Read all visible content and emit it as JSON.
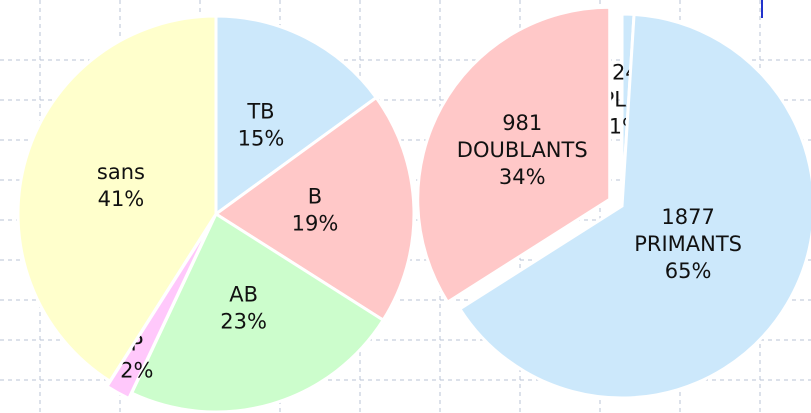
{
  "chart_data": [
    {
      "type": "pie",
      "categories": [
        "TB",
        "B",
        "AB",
        "P",
        "sans"
      ],
      "values": [
        15,
        19,
        23,
        2,
        41
      ],
      "value_labels": [
        "15%",
        "19%",
        "23%",
        "2%",
        "41%"
      ],
      "colors": [
        "#cce8fb",
        "#ffc8c8",
        "#ccfdcc",
        "#ffc8fb",
        "#ffffcc"
      ]
    },
    {
      "type": "pie",
      "categories": [
        "TRIPLANTS",
        "PRIMANTS",
        "DOUBLANTS"
      ],
      "counts": [
        24,
        1877,
        981
      ],
      "values": [
        1,
        65,
        34
      ],
      "value_labels": [
        "1%",
        "65%",
        "34%"
      ],
      "colors": [
        "#cce8fb",
        "#cce8fb",
        "#ffc8c8"
      ]
    }
  ]
}
